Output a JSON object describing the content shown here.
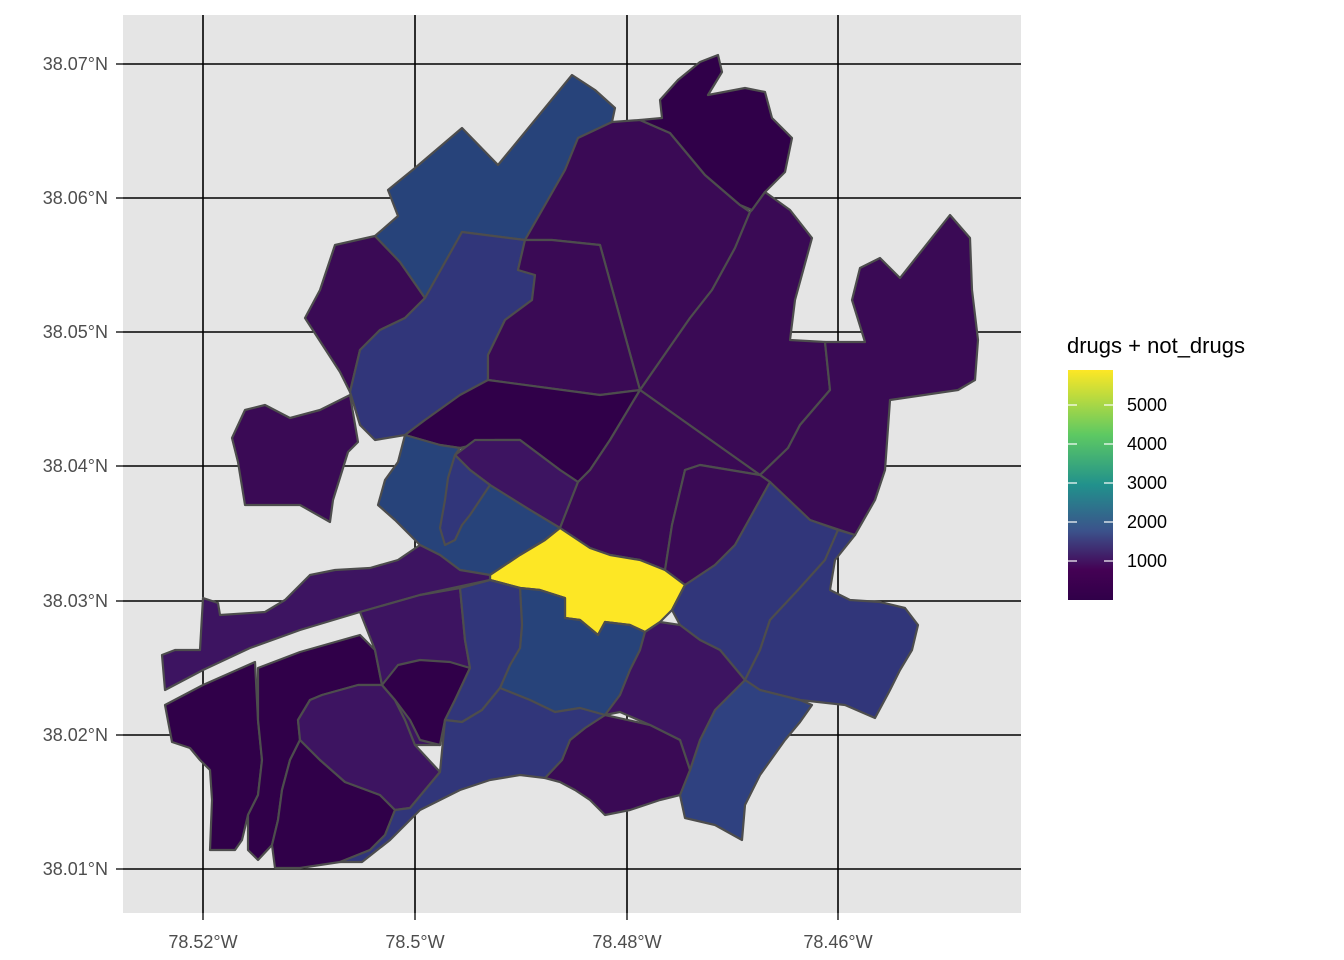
{
  "map": {
    "x_ticks": [
      "78.52°W",
      "78.5°W",
      "78.48°W",
      "78.46°W"
    ],
    "y_ticks": [
      "38.07°N",
      "38.06°N",
      "38.05°N",
      "38.04°N",
      "38.03°N",
      "38.02°N",
      "38.01°N"
    ],
    "panel_background": "#e5e5e5",
    "grid_color": "#000000",
    "border_color": "#4d4d4d"
  },
  "legend": {
    "title": "drugs + not_drugs",
    "labels": [
      "5000",
      "4000",
      "3000",
      "2000",
      "1000"
    ],
    "colors": [
      "#fde725",
      "#5ec962",
      "#21918c",
      "#3b528b",
      "#440154",
      "#300049"
    ]
  }
}
